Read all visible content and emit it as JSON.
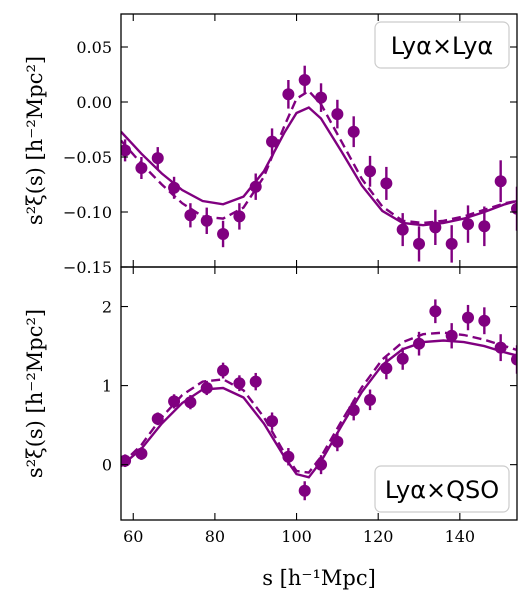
{
  "chart_data": [
    {
      "type": "scatter",
      "panel": "top",
      "legend": "Lyα×Lyα",
      "legend_placement": "upper right",
      "ylabel": "s²ξ(s) [h⁻²Mpc²]",
      "xlim": [
        57,
        154
      ],
      "ylim": [
        -0.15,
        0.08
      ],
      "xticks": [
        60,
        80,
        100,
        120,
        140
      ],
      "yticks": [
        -0.15,
        -0.1,
        -0.05,
        0.0,
        0.05
      ],
      "ytick_labels": [
        "−0.15",
        "−0.10",
        "−0.05",
        "0.00",
        "0.05"
      ],
      "color": "#800080",
      "points": {
        "x": [
          58,
          62,
          66,
          70,
          74,
          78,
          82,
          86,
          90,
          94,
          98,
          102,
          106,
          110,
          114,
          118,
          122,
          126,
          130,
          134,
          138,
          142,
          146,
          150,
          154
        ],
        "y": [
          -0.044,
          -0.06,
          -0.051,
          -0.078,
          -0.103,
          -0.108,
          -0.12,
          -0.104,
          -0.077,
          -0.036,
          0.007,
          0.02,
          0.004,
          -0.011,
          -0.027,
          -0.063,
          -0.074,
          -0.116,
          -0.129,
          -0.114,
          -0.129,
          -0.111,
          -0.113,
          -0.072,
          -0.097
        ],
        "yerr": [
          0.01,
          0.01,
          0.01,
          0.01,
          0.011,
          0.012,
          0.012,
          0.012,
          0.012,
          0.012,
          0.013,
          0.013,
          0.013,
          0.013,
          0.014,
          0.014,
          0.015,
          0.015,
          0.016,
          0.016,
          0.017,
          0.017,
          0.018,
          0.019,
          0.02
        ]
      },
      "dashed_model": {
        "x": [
          57,
          62,
          67,
          72,
          77,
          82,
          87,
          92,
          97,
          100,
          103,
          106,
          111,
          116,
          121,
          126,
          131,
          136,
          141,
          146,
          151,
          154
        ],
        "y": [
          -0.035,
          -0.056,
          -0.075,
          -0.092,
          -0.104,
          -0.106,
          -0.096,
          -0.068,
          -0.022,
          0.003,
          0.01,
          -0.002,
          -0.036,
          -0.07,
          -0.095,
          -0.108,
          -0.11,
          -0.108,
          -0.104,
          -0.098,
          -0.092,
          -0.09
        ]
      },
      "solid_model": {
        "x": [
          57,
          62,
          67,
          72,
          77,
          82,
          87,
          92,
          97,
          100,
          103,
          106,
          111,
          116,
          121,
          126,
          131,
          136,
          141,
          146,
          151,
          154
        ],
        "y": [
          -0.027,
          -0.047,
          -0.065,
          -0.08,
          -0.09,
          -0.093,
          -0.086,
          -0.063,
          -0.028,
          -0.01,
          -0.005,
          -0.015,
          -0.045,
          -0.076,
          -0.099,
          -0.11,
          -0.112,
          -0.11,
          -0.106,
          -0.1,
          -0.093,
          -0.09
        ]
      }
    },
    {
      "type": "scatter",
      "panel": "bottom",
      "legend": "Lyα×QSO",
      "legend_placement": "lower right",
      "ylabel": "s²ξ(s) [h⁻²Mpc²]",
      "xlabel": "s [h⁻¹Mpc]",
      "xlim": [
        57,
        154
      ],
      "ylim": [
        -0.7,
        2.5
      ],
      "xticks": [
        60,
        80,
        100,
        120,
        140
      ],
      "yticks": [
        0,
        1,
        2
      ],
      "ytick_labels": [
        "0",
        "1",
        "2"
      ],
      "color": "#800080",
      "points": {
        "x": [
          58,
          62,
          66,
          70,
          74,
          78,
          82,
          86,
          90,
          94,
          98,
          102,
          106,
          110,
          114,
          118,
          122,
          126,
          130,
          134,
          138,
          142,
          146,
          150,
          154
        ],
        "y": [
          0.05,
          0.14,
          0.58,
          0.8,
          0.79,
          0.97,
          1.19,
          1.03,
          1.05,
          0.55,
          0.1,
          -0.33,
          0.0,
          0.29,
          0.69,
          0.82,
          1.22,
          1.34,
          1.53,
          1.94,
          1.63,
          1.86,
          1.82,
          1.48,
          1.33
        ],
        "yerr": [
          0.08,
          0.08,
          0.08,
          0.09,
          0.09,
          0.09,
          0.1,
          0.1,
          0.11,
          0.11,
          0.11,
          0.12,
          0.12,
          0.12,
          0.13,
          0.13,
          0.14,
          0.14,
          0.15,
          0.15,
          0.16,
          0.16,
          0.17,
          0.17,
          0.18
        ]
      },
      "dashed_model": {
        "x": [
          57,
          62,
          67,
          72,
          77,
          82,
          87,
          92,
          97,
          100,
          103,
          106,
          111,
          116,
          121,
          126,
          131,
          136,
          141,
          146,
          151,
          154
        ],
        "y": [
          0.0,
          0.25,
          0.6,
          0.88,
          1.05,
          1.08,
          0.94,
          0.6,
          0.15,
          -0.08,
          -0.1,
          0.1,
          0.55,
          0.98,
          1.33,
          1.55,
          1.65,
          1.67,
          1.64,
          1.58,
          1.5,
          1.45
        ]
      },
      "solid_model": {
        "x": [
          57,
          62,
          67,
          72,
          77,
          82,
          87,
          92,
          97,
          100,
          103,
          106,
          111,
          116,
          121,
          126,
          131,
          136,
          141,
          146,
          151,
          154
        ],
        "y": [
          -0.02,
          0.2,
          0.52,
          0.78,
          0.95,
          0.97,
          0.85,
          0.52,
          0.1,
          -0.12,
          -0.16,
          0.04,
          0.49,
          0.92,
          1.26,
          1.46,
          1.55,
          1.57,
          1.55,
          1.5,
          1.42,
          1.38
        ]
      }
    }
  ]
}
